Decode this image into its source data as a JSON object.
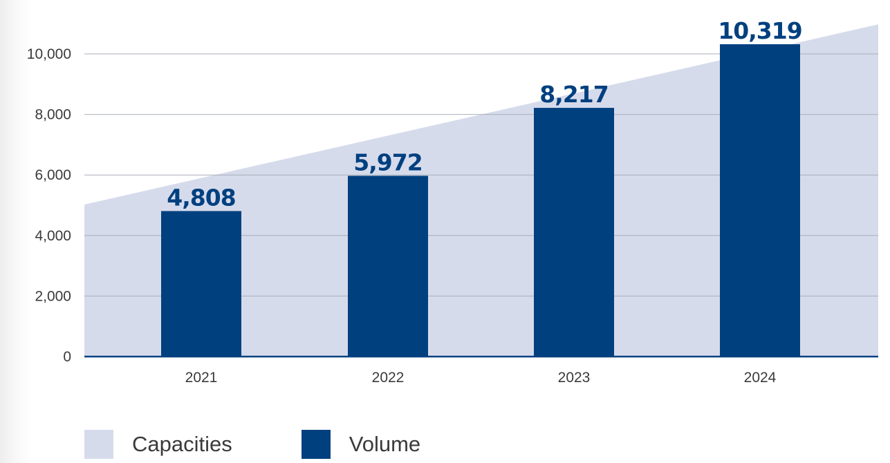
{
  "chart_data": {
    "type": "bar",
    "categories": [
      "2021",
      "2022",
      "2023",
      "2024"
    ],
    "series": [
      {
        "name": "Capacities",
        "kind": "area",
        "x": [
          "2020",
          "2025"
        ],
        "values": [
          4500,
          11500
        ]
      },
      {
        "name": "Volume",
        "kind": "bar",
        "values": [
          4808,
          5972,
          8217,
          10319
        ]
      }
    ],
    "data_labels": [
      "4,808",
      "5,972",
      "8,217",
      "10,319"
    ],
    "ylim": [
      0,
      10000
    ],
    "yticks": [
      0,
      2000,
      4000,
      6000,
      8000,
      10000
    ],
    "ytick_labels": [
      "0",
      "2,000",
      "4,000",
      "6,000",
      "8,000",
      "10,000"
    ],
    "grid": true,
    "legend_placement": "bottom-left",
    "colors": {
      "capacities": "#d6dbec",
      "volume": "#00407f",
      "gridline": "#a9aeb8"
    }
  },
  "legend": {
    "capacities_label": "Capacities",
    "volume_label": "Volume"
  }
}
